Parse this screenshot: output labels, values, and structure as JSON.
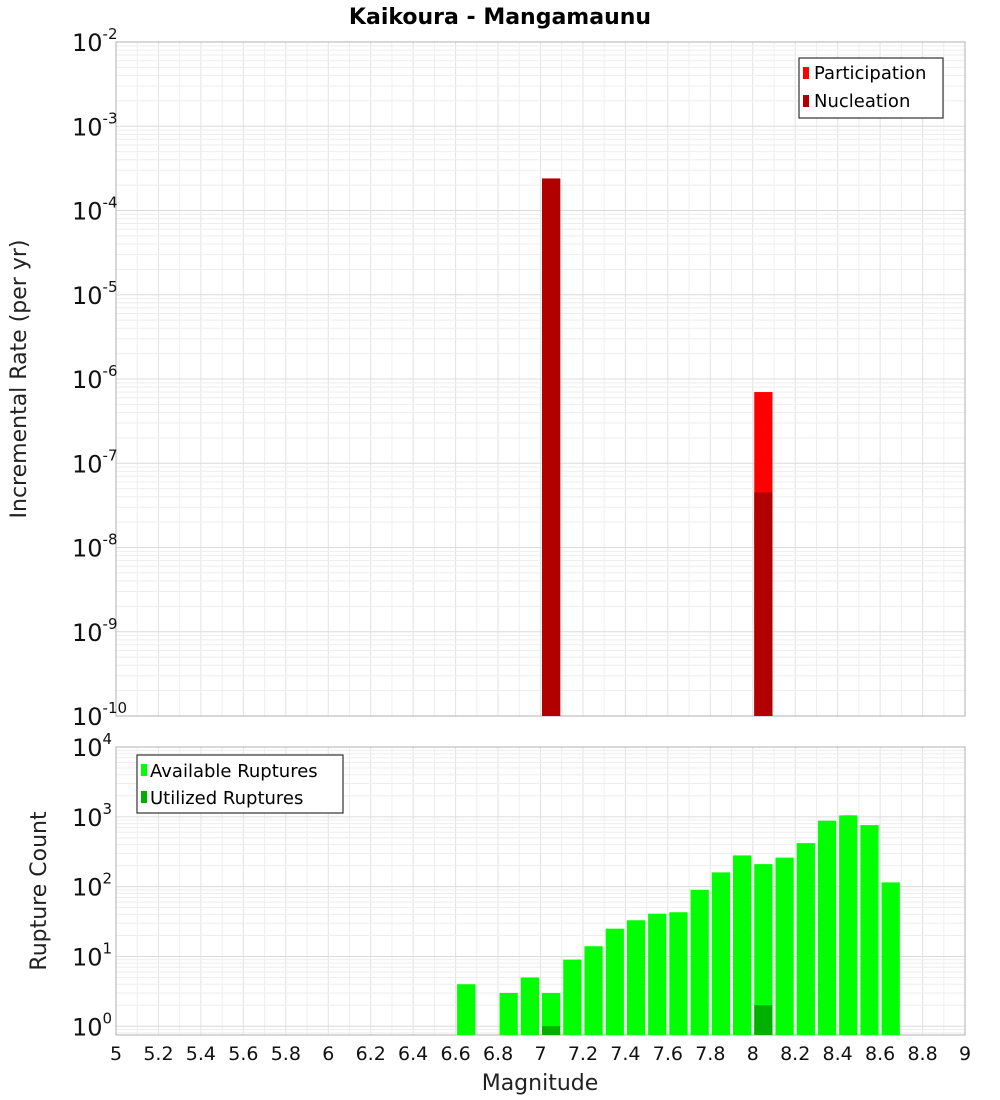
{
  "title": "Kaikoura - Mangamaunu",
  "xlabel": "Magnitude",
  "chart_data": [
    {
      "type": "bar",
      "panel": "top",
      "ylabel": "Incremental Rate (per yr)",
      "xlim": [
        5,
        9
      ],
      "ylim": [
        1e-10,
        0.01
      ],
      "yscale": "log",
      "ytick_exponents": [
        "-10",
        "-9",
        "-8",
        "-7",
        "-6",
        "-5",
        "-4",
        "-3",
        "-2"
      ],
      "grid": true,
      "legend_position": "top-right",
      "bar_width": 0.1,
      "series": [
        {
          "name": "Participation",
          "color": "#ff0000",
          "x": [
            7.05,
            8.05
          ],
          "values": [
            0.00024,
            7e-07
          ]
        },
        {
          "name": "Nucleation",
          "color": "#b00000",
          "x": [
            7.05,
            8.05
          ],
          "values": [
            0.00024,
            4.5e-08
          ]
        }
      ]
    },
    {
      "type": "bar",
      "panel": "bottom",
      "ylabel": "Rupture Count",
      "xlim": [
        5,
        9
      ],
      "ylim": [
        0.75,
        10000
      ],
      "yscale": "log",
      "ytick_exponents": [
        "0",
        "1",
        "2",
        "3",
        "4"
      ],
      "grid": true,
      "legend_position": "top-left",
      "bar_width": 0.1,
      "series": [
        {
          "name": "Available Ruptures",
          "color": "#00ff00",
          "x": [
            6.65,
            6.85,
            6.95,
            7.05,
            7.15,
            7.25,
            7.35,
            7.45,
            7.55,
            7.65,
            7.75,
            7.85,
            7.95,
            8.05,
            8.15,
            8.25,
            8.35,
            8.45,
            8.55,
            8.65
          ],
          "values": [
            4,
            3,
            5,
            3,
            9,
            14,
            25,
            33,
            41,
            43,
            90,
            160,
            280,
            210,
            260,
            420,
            880,
            1050,
            760,
            115
          ]
        },
        {
          "name": "Utilized Ruptures",
          "color": "#00b000",
          "x": [
            7.05,
            8.05
          ],
          "values": [
            1,
            2
          ]
        }
      ]
    }
  ],
  "xticks": [
    "5",
    "5.2",
    "5.4",
    "5.6",
    "5.8",
    "6",
    "6.2",
    "6.4",
    "6.6",
    "6.8",
    "7",
    "7.2",
    "7.4",
    "7.6",
    "7.8",
    "8",
    "8.2",
    "8.4",
    "8.6",
    "8.8",
    "9"
  ]
}
